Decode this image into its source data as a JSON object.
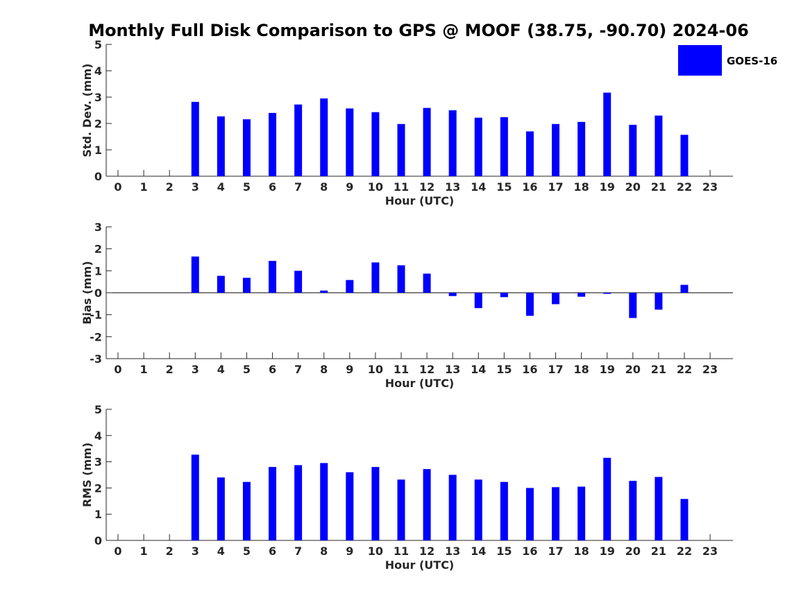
{
  "chart_data": {
    "title": "Monthly Full Disk Comparison to GPS @ MOOF (38.75, -90.70) 2024-06",
    "legend": {
      "placement": "top-right",
      "entries": [
        {
          "name": "GOES-16",
          "color": "#0000ff"
        }
      ]
    },
    "bar_color": "#0000ff",
    "panels": [
      {
        "type": "bar",
        "ylabel": "Std. Dev. (mm)",
        "xlabel": "Hour (UTC)",
        "ylim": [
          0,
          5
        ],
        "yticks": [
          "0",
          "1",
          "2",
          "3",
          "4",
          "5"
        ],
        "categories": [
          "0",
          "1",
          "2",
          "3",
          "4",
          "5",
          "6",
          "7",
          "8",
          "9",
          "10",
          "11",
          "12",
          "13",
          "14",
          "15",
          "16",
          "17",
          "18",
          "19",
          "20",
          "21",
          "22",
          "23"
        ],
        "values": [
          null,
          null,
          null,
          2.82,
          2.27,
          2.16,
          2.4,
          2.72,
          2.95,
          2.57,
          2.43,
          1.98,
          2.59,
          2.5,
          2.22,
          2.24,
          1.7,
          1.98,
          2.06,
          3.17,
          1.95,
          2.3,
          1.57,
          null
        ]
      },
      {
        "type": "bar",
        "ylabel": "Bias (mm)",
        "xlabel": "Hour (UTC)",
        "ylim": [
          -3,
          3
        ],
        "yticks": [
          "-3",
          "-2",
          "-1",
          "0",
          "1",
          "2",
          "3"
        ],
        "categories": [
          "0",
          "1",
          "2",
          "3",
          "4",
          "5",
          "6",
          "7",
          "8",
          "9",
          "10",
          "11",
          "12",
          "13",
          "14",
          "15",
          "16",
          "17",
          "18",
          "19",
          "20",
          "21",
          "22",
          "23"
        ],
        "values": [
          null,
          null,
          null,
          1.65,
          0.77,
          0.68,
          1.45,
          1.0,
          0.1,
          0.58,
          1.38,
          1.25,
          0.87,
          -0.15,
          -0.7,
          -0.2,
          -1.05,
          -0.52,
          -0.18,
          -0.05,
          -1.15,
          -0.77,
          0.36,
          null
        ]
      },
      {
        "type": "bar",
        "ylabel": "RMS (mm)",
        "xlabel": "Hour (UTC)",
        "ylim": [
          0,
          5
        ],
        "yticks": [
          "0",
          "1",
          "2",
          "3",
          "4",
          "5"
        ],
        "categories": [
          "0",
          "1",
          "2",
          "3",
          "4",
          "5",
          "6",
          "7",
          "8",
          "9",
          "10",
          "11",
          "12",
          "13",
          "14",
          "15",
          "16",
          "17",
          "18",
          "19",
          "20",
          "21",
          "22",
          "23"
        ],
        "values": [
          null,
          null,
          null,
          3.27,
          2.4,
          2.23,
          2.8,
          2.87,
          2.95,
          2.6,
          2.8,
          2.32,
          2.72,
          2.5,
          2.32,
          2.23,
          2.0,
          2.03,
          2.05,
          3.15,
          2.27,
          2.42,
          1.58,
          null
        ]
      }
    ]
  }
}
